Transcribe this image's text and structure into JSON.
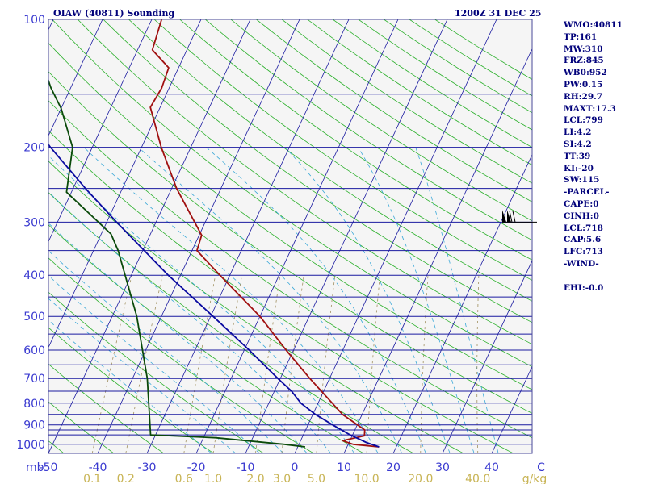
{
  "header": {
    "station_title": "OIAW (40811) Sounding",
    "valid_time": "1200Z 31 DEC 25"
  },
  "stats": [
    "WMO:40811",
    "TP:161",
    "MW:310",
    "FRZ:845",
    "WB0:952",
    "PW:0.15",
    "RH:29.7",
    "MAXT:17.3",
    "LCL:799",
    "LI:4.2",
    "SI:4.2",
    "TT:39",
    "KI:-20",
    "SW:115",
    "-PARCEL-",
    "CAPE:0",
    "CINH:0",
    "LCL:718",
    "CAP:5.6",
    "LFC:713",
    "-WIND-",
    "",
    "EHI:-0.0"
  ],
  "colors": {
    "background": "#f5f5f5",
    "isobar": "#1a1aa0",
    "isotherm": "#1a1aa0",
    "dry_adiabat": "#2cb02c",
    "moist_adiabat": "#3aa8d8",
    "mixing_ratio": "#a09060",
    "temperature": "#a01010",
    "dewpoint": "#0a4a0a",
    "parcel": "#0a0aa0",
    "labels": "#00007a"
  },
  "chart_data": {
    "type": "line",
    "diagram": "skew-T log-P",
    "y_scale": "log",
    "xlabel": "",
    "ylabel": "mb",
    "mixing_ratio_unit": "g/kg",
    "pressure_range_mb": [
      100,
      1050
    ],
    "temperature_range_c": [
      -50,
      50
    ],
    "pressure_ticks": [
      100,
      200,
      300,
      400,
      500,
      600,
      700,
      800,
      900,
      1000
    ],
    "pressure_tick_labels": [
      "100",
      "200",
      "300",
      "400",
      "500",
      "600",
      "700",
      "800",
      "900",
      "1000"
    ],
    "isobars_mb": [
      100,
      150,
      200,
      250,
      300,
      350,
      400,
      450,
      500,
      550,
      600,
      650,
      700,
      750,
      800,
      850,
      900,
      925,
      950,
      1000,
      1050
    ],
    "temperature_ticks": [
      -50,
      -40,
      -30,
      -20,
      -10,
      0,
      10,
      20,
      30,
      40,
      50
    ],
    "temperature_tick_labels": [
      "-50",
      "-40",
      "-30",
      "-20",
      "-10",
      "0",
      "10",
      "20",
      "30",
      "40",
      "C"
    ],
    "mixing_ratio_lines": [
      0.1,
      0.2,
      0.6,
      1.0,
      2.0,
      3.0,
      5.0,
      10.0,
      20.0,
      40.0
    ],
    "mixing_ratio_labels": [
      "0.1",
      "0.2",
      "0.6",
      "1.0",
      "2.0",
      "3.0",
      "5.0",
      "10.0",
      "20.0",
      "40.0"
    ],
    "series": [
      {
        "key": "temperature",
        "points": [
          {
            "p": 1014,
            "t": 16.5
          },
          {
            "p": 1000,
            "t": 11.0
          },
          {
            "p": 980,
            "t": 8.5
          },
          {
            "p": 955,
            "t": 12.5
          },
          {
            "p": 925,
            "t": 12.0
          },
          {
            "p": 850,
            "t": 6.0
          },
          {
            "p": 700,
            "t": -4.0
          },
          {
            "p": 600,
            "t": -11.5
          },
          {
            "p": 500,
            "t": -20.0
          },
          {
            "p": 400,
            "t": -32.0
          },
          {
            "p": 350,
            "t": -39.0
          },
          {
            "p": 322,
            "t": -39.5
          },
          {
            "p": 250,
            "t": -49.0
          },
          {
            "p": 200,
            "t": -56.0
          },
          {
            "p": 161,
            "t": -62.0
          },
          {
            "p": 145,
            "t": -61.5
          },
          {
            "p": 130,
            "t": -62.0
          },
          {
            "p": 118,
            "t": -67.0
          },
          {
            "p": 100,
            "t": -68.0
          }
        ]
      },
      {
        "key": "dewpoint",
        "points": [
          {
            "p": 1014,
            "t": 1.5
          },
          {
            "p": 1000,
            "t": -3.0
          },
          {
            "p": 965,
            "t": -17.5
          },
          {
            "p": 950,
            "t": -31.0
          },
          {
            "p": 700,
            "t": -37.0
          },
          {
            "p": 500,
            "t": -45.0
          },
          {
            "p": 350,
            "t": -55.0
          },
          {
            "p": 320,
            "t": -58.0
          },
          {
            "p": 255,
            "t": -71.0
          },
          {
            "p": 200,
            "t": -74.0
          },
          {
            "p": 162,
            "t": -80.0
          },
          {
            "p": 145,
            "t": -84.0
          },
          {
            "p": 127,
            "t": -88.0
          },
          {
            "p": 115,
            "t": -93.0
          },
          {
            "p": 100,
            "t": -97.0
          }
        ]
      },
      {
        "key": "parcel",
        "points": [
          {
            "p": 1014,
            "t": 16.5
          },
          {
            "p": 990,
            "t": 13.5
          },
          {
            "p": 950,
            "t": 9.5
          },
          {
            "p": 900,
            "t": 5.0
          },
          {
            "p": 850,
            "t": 0.5
          },
          {
            "p": 800,
            "t": -3.5
          },
          {
            "p": 750,
            "t": -6.5
          },
          {
            "p": 700,
            "t": -10.5
          },
          {
            "p": 600,
            "t": -19.0
          },
          {
            "p": 500,
            "t": -29.5
          },
          {
            "p": 400,
            "t": -42.5
          },
          {
            "p": 300,
            "t": -58.0
          },
          {
            "p": 250,
            "t": -67.5
          },
          {
            "p": 200,
            "t": -78.5
          },
          {
            "p": 160,
            "t": -88.5
          },
          {
            "p": 130,
            "t": -98.0
          },
          {
            "p": 115,
            "t": -104.0
          }
        ]
      }
    ],
    "wind_barb": {
      "p": 300,
      "direction_deg": 270,
      "speed_kt": 120
    }
  }
}
